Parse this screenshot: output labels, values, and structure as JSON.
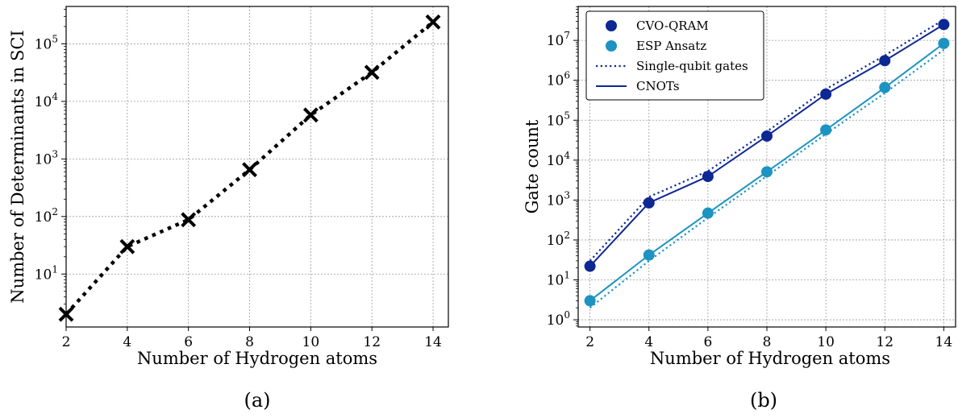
{
  "colors": {
    "cvo": "#0d2893",
    "esp": "#1c93c1",
    "black": "#000000"
  },
  "chart_data": [
    {
      "id": "a",
      "type": "line",
      "caption": "(a)",
      "xlabel": "Number of Hydrogen atoms",
      "ylabel": "Number of Determinants in SCI",
      "xlim": [
        2,
        14.5
      ],
      "ylim_log10": [
        0.08,
        5.65
      ],
      "yscale": "log",
      "grid": true,
      "xticks": [
        "2",
        "4",
        "6",
        "8",
        "10",
        "12",
        "14"
      ],
      "yticks": [
        {
          "base": "10",
          "exp": "1"
        },
        {
          "base": "10",
          "exp": "2"
        },
        {
          "base": "10",
          "exp": "3"
        },
        {
          "base": "10",
          "exp": "4"
        },
        {
          "base": "10",
          "exp": "5"
        }
      ],
      "series": [
        {
          "x": [
            2,
            4,
            6,
            8,
            10,
            12,
            14
          ],
          "y": [
            2,
            30,
            88,
            650,
            5800,
            32000,
            240000
          ],
          "marker": "x",
          "line": "dotted",
          "color": "#000000"
        }
      ]
    },
    {
      "id": "b",
      "type": "line",
      "caption": "(b)",
      "xlabel": "Number of Hydrogen atoms",
      "ylabel": "Gate count",
      "xlim": [
        1.6,
        14.4
      ],
      "ylim_log10": [
        -0.18,
        7.85
      ],
      "yscale": "log",
      "grid": true,
      "legend_position": "top-left",
      "xticks": [
        "2",
        "4",
        "6",
        "8",
        "10",
        "12",
        "14"
      ],
      "yticks": [
        {
          "base": "10",
          "exp": "0"
        },
        {
          "base": "10",
          "exp": "1"
        },
        {
          "base": "10",
          "exp": "2"
        },
        {
          "base": "10",
          "exp": "3"
        },
        {
          "base": "10",
          "exp": "4"
        },
        {
          "base": "10",
          "exp": "5"
        },
        {
          "base": "10",
          "exp": "6"
        },
        {
          "base": "10",
          "exp": "7"
        }
      ],
      "legend": [
        {
          "label": "CVO-QRAM",
          "kind": "dot",
          "color": "#0d2893"
        },
        {
          "label": "ESP Ansatz",
          "kind": "dot",
          "color": "#1c93c1"
        },
        {
          "label": "Single-qubit gates",
          "kind": "dotted",
          "color": "#0d2893"
        },
        {
          "label": "CNOTs",
          "kind": "solid",
          "color": "#0d2893"
        }
      ],
      "series": [
        {
          "method": "CVO-QRAM",
          "gate": "Single-qubit gates",
          "x": [
            2,
            4,
            6,
            8,
            10,
            12,
            14
          ],
          "y": [
            30,
            1200,
            5300,
            52000,
            600000,
            4200000,
            33000000
          ],
          "line": "dotted",
          "marker": "none",
          "color": "#0d2893"
        },
        {
          "method": "CVO-QRAM",
          "gate": "CNOTs",
          "x": [
            2,
            4,
            6,
            8,
            10,
            12,
            14
          ],
          "y": [
            22,
            850,
            3900,
            40000,
            450000,
            3100000,
            25000000
          ],
          "line": "solid",
          "marker": "dot",
          "color": "#0d2893"
        },
        {
          "method": "ESP Ansatz",
          "gate": "Single-qubit gates",
          "x": [
            2,
            4,
            6,
            8,
            10,
            12,
            14
          ],
          "y": [
            2,
            30,
            360,
            4000,
            45000,
            480000,
            5800000
          ],
          "line": "dotted",
          "marker": "none",
          "color": "#1c93c1"
        },
        {
          "method": "ESP Ansatz",
          "gate": "CNOTs",
          "x": [
            2,
            4,
            6,
            8,
            10,
            12,
            14
          ],
          "y": [
            3,
            42,
            470,
            5100,
            57000,
            660000,
            8400000
          ],
          "line": "solid",
          "marker": "dot",
          "color": "#1c93c1"
        }
      ]
    }
  ]
}
